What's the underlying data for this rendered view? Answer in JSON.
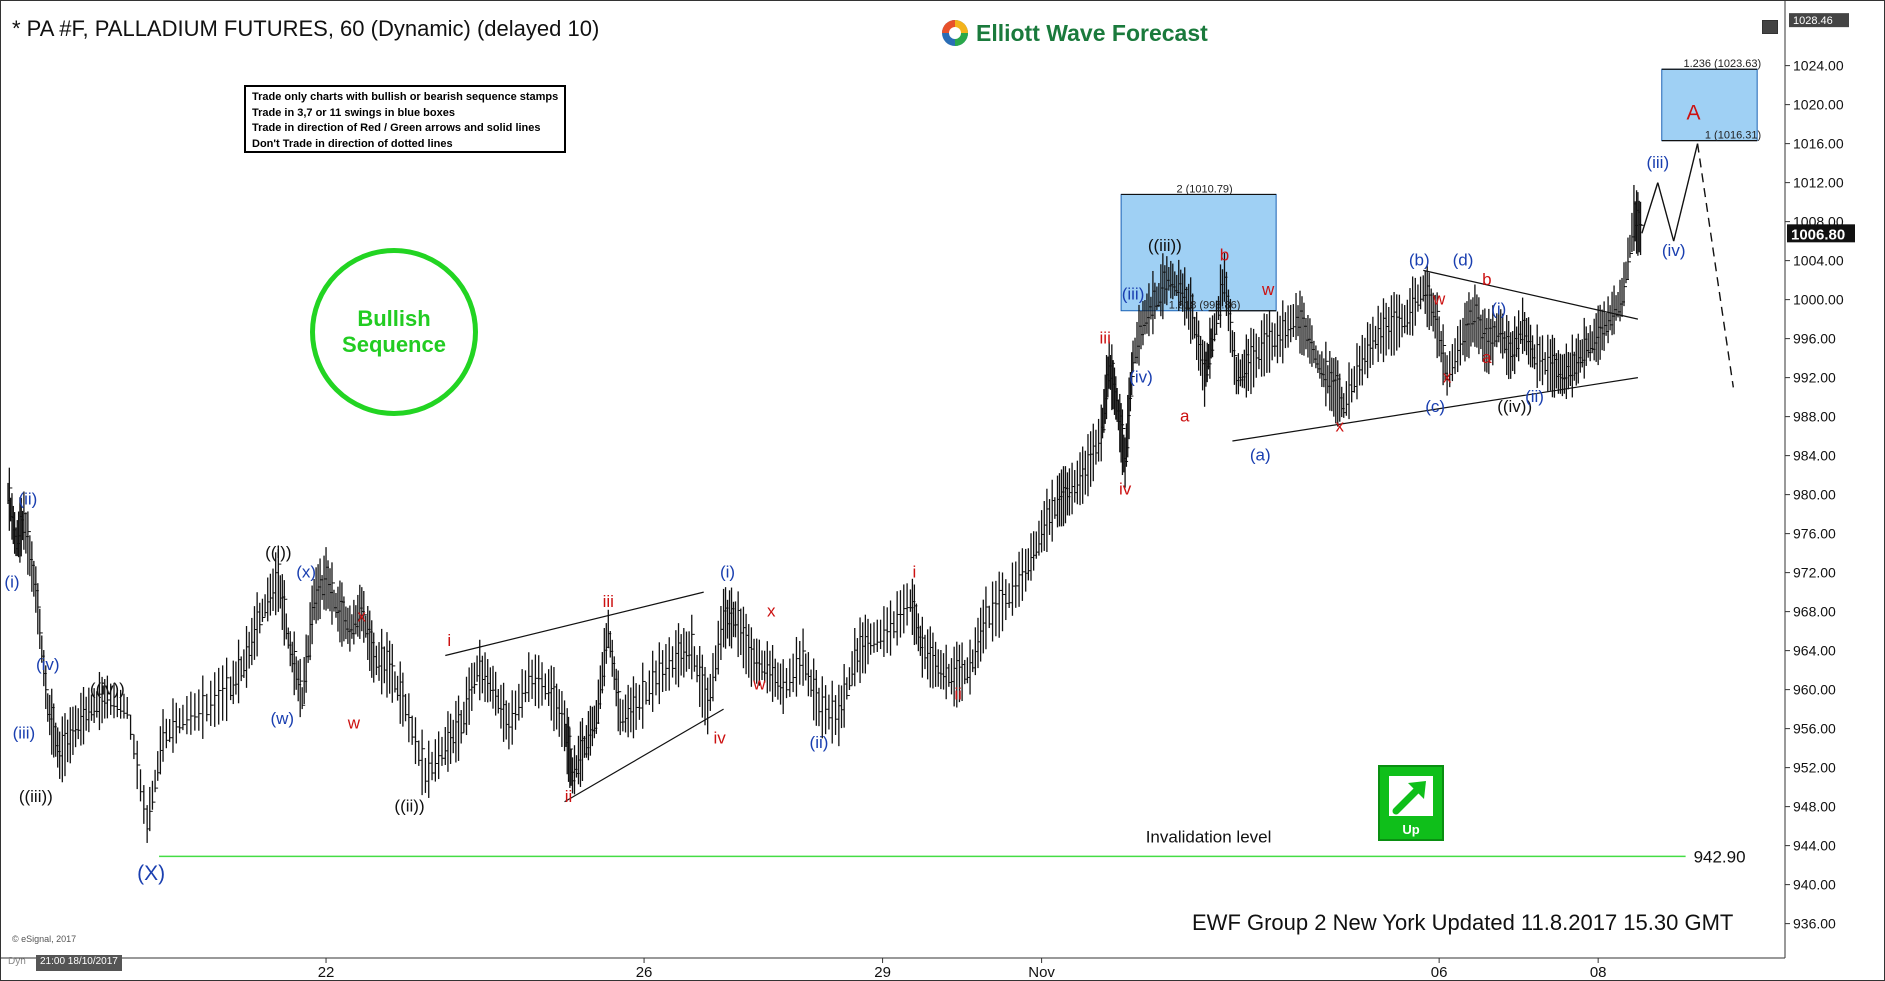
{
  "header": {
    "title": "* PA #F, PALLADIUM FUTURES, 60 (Dynamic) (delayed 10)",
    "brand": "Elliott Wave Forecast",
    "brand_icon": "wave-logo-icon"
  },
  "rules": [
    "Trade only charts with bullish or bearish sequence stamps",
    "Trade in 3,7 or 11 swings in blue boxes",
    "Trade in direction of Red / Green arrows and solid lines",
    "Don't Trade in direction of dotted lines"
  ],
  "sequence_stamp": {
    "line1": "Bullish",
    "line2": "Sequence",
    "color": "#22cc22"
  },
  "up_badge": {
    "label": "Up",
    "icon": "up-arrow-icon",
    "color": "#0fbf1a"
  },
  "footer": {
    "updated": "EWF Group 2 New York Updated 11.8.2017 15.30 GMT",
    "esignal": "© eSignal, 2017",
    "dyn": "Dyn",
    "cursor_date": "21:00 18/10/2017"
  },
  "chart_data": {
    "type": "line",
    "title": "",
    "xlabel": "",
    "ylabel": "",
    "ylim": [
      933.5,
      1029.5
    ],
    "y_ticks": [
      "1024.00",
      "1020.00",
      "1016.00",
      "1012.00",
      "1008.00",
      "1004.00",
      "1000.00",
      "996.00",
      "992.00",
      "988.00",
      "984.00",
      "980.00",
      "976.00",
      "972.00",
      "968.00",
      "964.00",
      "960.00",
      "956.00",
      "952.00",
      "948.00",
      "944.00",
      "940.00",
      "936.00"
    ],
    "top_scale_label": "1028.46",
    "last_price": "1006.80",
    "x_ticks": [
      {
        "label": "22",
        "t": 22
      },
      {
        "label": "26",
        "t": 26
      },
      {
        "label": "29",
        "t": 29
      },
      {
        "label": "Nov",
        "t": 31
      },
      {
        "label": "06",
        "t": 36
      },
      {
        "label": "08",
        "t": 38
      }
    ],
    "price_series": [
      {
        "t": 18.0,
        "v": 980
      },
      {
        "t": 18.1,
        "v": 975
      },
      {
        "t": 18.2,
        "v": 977
      },
      {
        "t": 18.35,
        "v": 970
      },
      {
        "t": 18.5,
        "v": 958
      },
      {
        "t": 18.65,
        "v": 953
      },
      {
        "t": 18.85,
        "v": 956
      },
      {
        "t": 19.05,
        "v": 958
      },
      {
        "t": 19.25,
        "v": 959
      },
      {
        "t": 19.5,
        "v": 958
      },
      {
        "t": 19.75,
        "v": 946
      },
      {
        "t": 19.95,
        "v": 955
      },
      {
        "t": 20.2,
        "v": 957
      },
      {
        "t": 20.5,
        "v": 958
      },
      {
        "t": 20.8,
        "v": 960
      },
      {
        "t": 21.0,
        "v": 963
      },
      {
        "t": 21.2,
        "v": 968
      },
      {
        "t": 21.4,
        "v": 971
      },
      {
        "t": 21.55,
        "v": 964
      },
      {
        "t": 21.7,
        "v": 959
      },
      {
        "t": 21.85,
        "v": 969
      },
      {
        "t": 22.0,
        "v": 971
      },
      {
        "t": 22.15,
        "v": 968
      },
      {
        "t": 22.3,
        "v": 966
      },
      {
        "t": 22.45,
        "v": 968
      },
      {
        "t": 22.6,
        "v": 963
      },
      {
        "t": 22.8,
        "v": 962
      },
      {
        "t": 23.0,
        "v": 958
      },
      {
        "t": 23.25,
        "v": 951
      },
      {
        "t": 23.5,
        "v": 954
      },
      {
        "t": 23.7,
        "v": 956
      },
      {
        "t": 23.9,
        "v": 962
      },
      {
        "t": 24.1,
        "v": 960
      },
      {
        "t": 24.3,
        "v": 956
      },
      {
        "t": 24.55,
        "v": 961
      },
      {
        "t": 24.8,
        "v": 960
      },
      {
        "t": 25.0,
        "v": 956
      },
      {
        "t": 25.1,
        "v": 951
      },
      {
        "t": 25.25,
        "v": 954
      },
      {
        "t": 25.4,
        "v": 957
      },
      {
        "t": 25.55,
        "v": 966
      },
      {
        "t": 25.7,
        "v": 957
      },
      {
        "t": 25.9,
        "v": 958
      },
      {
        "t": 26.15,
        "v": 961
      },
      {
        "t": 26.4,
        "v": 963
      },
      {
        "t": 26.6,
        "v": 964
      },
      {
        "t": 26.8,
        "v": 958
      },
      {
        "t": 27.0,
        "v": 967
      },
      {
        "t": 27.15,
        "v": 967
      },
      {
        "t": 27.35,
        "v": 963
      },
      {
        "t": 27.55,
        "v": 962
      },
      {
        "t": 27.75,
        "v": 960
      },
      {
        "t": 28.0,
        "v": 963
      },
      {
        "t": 28.2,
        "v": 958
      },
      {
        "t": 28.45,
        "v": 957
      },
      {
        "t": 28.65,
        "v": 963
      },
      {
        "t": 28.85,
        "v": 965
      },
      {
        "t": 29.1,
        "v": 966
      },
      {
        "t": 29.35,
        "v": 969
      },
      {
        "t": 29.5,
        "v": 964
      },
      {
        "t": 29.7,
        "v": 962
      },
      {
        "t": 29.9,
        "v": 961
      },
      {
        "t": 30.1,
        "v": 962
      },
      {
        "t": 30.3,
        "v": 967
      },
      {
        "t": 30.55,
        "v": 969
      },
      {
        "t": 30.8,
        "v": 972
      },
      {
        "t": 31.0,
        "v": 976
      },
      {
        "t": 31.2,
        "v": 979
      },
      {
        "t": 31.35,
        "v": 980
      },
      {
        "t": 31.55,
        "v": 982
      },
      {
        "t": 31.75,
        "v": 986
      },
      {
        "t": 31.85,
        "v": 993
      },
      {
        "t": 31.95,
        "v": 989
      },
      {
        "t": 32.05,
        "v": 983
      },
      {
        "t": 32.15,
        "v": 994
      },
      {
        "t": 32.3,
        "v": 998
      },
      {
        "t": 32.45,
        "v": 1000
      },
      {
        "t": 32.6,
        "v": 1002
      },
      {
        "t": 32.75,
        "v": 1001
      },
      {
        "t": 32.9,
        "v": 998
      },
      {
        "t": 33.05,
        "v": 992
      },
      {
        "t": 33.15,
        "v": 996
      },
      {
        "t": 33.3,
        "v": 1002
      },
      {
        "t": 33.45,
        "v": 992
      },
      {
        "t": 33.6,
        "v": 993
      },
      {
        "t": 33.8,
        "v": 995
      },
      {
        "t": 34.0,
        "v": 996
      },
      {
        "t": 34.2,
        "v": 998
      },
      {
        "t": 34.35,
        "v": 996
      },
      {
        "t": 34.5,
        "v": 993
      },
      {
        "t": 34.65,
        "v": 991
      },
      {
        "t": 34.8,
        "v": 989
      },
      {
        "t": 35.0,
        "v": 993
      },
      {
        "t": 35.2,
        "v": 996
      },
      {
        "t": 35.4,
        "v": 997
      },
      {
        "t": 35.6,
        "v": 998
      },
      {
        "t": 35.8,
        "v": 1001
      },
      {
        "t": 35.95,
        "v": 998
      },
      {
        "t": 36.1,
        "v": 992
      },
      {
        "t": 36.3,
        "v": 996
      },
      {
        "t": 36.45,
        "v": 998
      },
      {
        "t": 36.6,
        "v": 995
      },
      {
        "t": 36.75,
        "v": 997
      },
      {
        "t": 36.9,
        "v": 994
      },
      {
        "t": 37.05,
        "v": 997
      },
      {
        "t": 37.2,
        "v": 994
      },
      {
        "t": 37.4,
        "v": 993
      },
      {
        "t": 37.55,
        "v": 992
      },
      {
        "t": 37.7,
        "v": 993
      },
      {
        "t": 37.85,
        "v": 995
      },
      {
        "t": 38.0,
        "v": 996
      },
      {
        "t": 38.15,
        "v": 998
      },
      {
        "t": 38.3,
        "v": 1000
      },
      {
        "t": 38.45,
        "v": 1008
      },
      {
        "t": 38.55,
        "v": 1006.8
      }
    ],
    "projection": [
      {
        "t": 38.55,
        "v": 1006.8
      },
      {
        "t": 38.75,
        "v": 1012
      },
      {
        "t": 38.95,
        "v": 1006
      },
      {
        "t": 39.25,
        "v": 1016
      },
      {
        "t": 39.7,
        "v": 991
      }
    ],
    "blue_boxes": [
      {
        "t1": 32.0,
        "t2": 33.95,
        "v1": 998.86,
        "v2": 1010.79
      },
      {
        "t1": 38.8,
        "t2": 40.0,
        "v1": 1016.31,
        "v2": 1023.63
      }
    ],
    "fib_levels": [
      {
        "label": "2 (1010.79)",
        "v": 1010.79
      },
      {
        "label": "1.618 (998.86)",
        "v": 998.86
      },
      {
        "label": "1.236 (1023.63)",
        "v": 1023.63
      },
      {
        "label": "1 (1016.31)",
        "v": 1016.31
      }
    ],
    "invalidation": {
      "label": "Invalidation level",
      "value_label": "942.90",
      "v": 942.9,
      "color": "#44dd44"
    },
    "wave_labels": [
      {
        "text": "(ii)",
        "t": 18.25,
        "v": 979,
        "color": "#1a3fb0"
      },
      {
        "text": "(i)",
        "t": 18.05,
        "v": 970.5,
        "color": "#1a3fb0"
      },
      {
        "text": "(iv)",
        "t": 18.5,
        "v": 962,
        "color": "#1a3fb0"
      },
      {
        "text": "(iii)",
        "t": 18.2,
        "v": 955,
        "color": "#1a3fb0"
      },
      {
        "text": "((iii))",
        "t": 18.35,
        "v": 948.5,
        "color": "#111111"
      },
      {
        "text": "((iv))",
        "t": 19.25,
        "v": 959.5,
        "color": "#111111"
      },
      {
        "text": "(X)",
        "t": 19.8,
        "v": 940.5,
        "color": "#1a3fb0"
      },
      {
        "text": "((i))",
        "t": 21.4,
        "v": 973.5,
        "color": "#111111"
      },
      {
        "text": "(x)",
        "t": 21.75,
        "v": 971.5,
        "color": "#1a3fb0"
      },
      {
        "text": "(w)",
        "t": 21.45,
        "v": 956.5,
        "color": "#1a3fb0"
      },
      {
        "text": "x",
        "t": 22.45,
        "v": 967,
        "color": "#cc1111"
      },
      {
        "text": "w",
        "t": 22.35,
        "v": 956,
        "color": "#cc1111"
      },
      {
        "text": "((ii))",
        "t": 23.05,
        "v": 947.5,
        "color": "#111111"
      },
      {
        "text": "i",
        "t": 23.55,
        "v": 964.5,
        "color": "#cc1111"
      },
      {
        "text": "iii",
        "t": 25.55,
        "v": 968.5,
        "color": "#cc1111"
      },
      {
        "text": "ii",
        "t": 25.05,
        "v": 948.5,
        "color": "#cc1111"
      },
      {
        "text": "(i)",
        "t": 27.05,
        "v": 971.5,
        "color": "#1a3fb0"
      },
      {
        "text": "iv",
        "t": 26.95,
        "v": 954.5,
        "color": "#cc1111"
      },
      {
        "text": "x",
        "t": 27.6,
        "v": 967.5,
        "color": "#cc1111"
      },
      {
        "text": "w",
        "t": 27.45,
        "v": 960,
        "color": "#cc1111"
      },
      {
        "text": "(ii)",
        "t": 28.2,
        "v": 954,
        "color": "#1a3fb0"
      },
      {
        "text": "i",
        "t": 29.4,
        "v": 971.5,
        "color": "#cc1111"
      },
      {
        "text": "ii",
        "t": 29.95,
        "v": 959,
        "color": "#cc1111"
      },
      {
        "text": "iii",
        "t": 31.8,
        "v": 995.5,
        "color": "#cc1111"
      },
      {
        "text": "iv",
        "t": 32.05,
        "v": 980,
        "color": "#cc1111"
      },
      {
        "text": "(iii)",
        "t": 32.15,
        "v": 1000,
        "color": "#1a3fb0"
      },
      {
        "text": "(iv)",
        "t": 32.25,
        "v": 991.5,
        "color": "#1a3fb0"
      },
      {
        "text": "((iii))",
        "t": 32.55,
        "v": 1005,
        "color": "#111111"
      },
      {
        "text": "a",
        "t": 32.8,
        "v": 987.5,
        "color": "#cc1111"
      },
      {
        "text": "b",
        "t": 33.3,
        "v": 1004,
        "color": "#cc1111"
      },
      {
        "text": "w",
        "t": 33.85,
        "v": 1000.5,
        "color": "#cc1111"
      },
      {
        "text": "(a)",
        "t": 33.75,
        "v": 983.5,
        "color": "#1a3fb0"
      },
      {
        "text": "x",
        "t": 34.75,
        "v": 986.5,
        "color": "#cc1111"
      },
      {
        "text": "(b)",
        "t": 35.75,
        "v": 1003.5,
        "color": "#1a3fb0"
      },
      {
        "text": "w",
        "t": 36.0,
        "v": 999.5,
        "color": "#cc1111"
      },
      {
        "text": "x",
        "t": 36.1,
        "v": 991.5,
        "color": "#cc1111"
      },
      {
        "text": "(c)",
        "t": 35.95,
        "v": 988.5,
        "color": "#1a3fb0"
      },
      {
        "text": "(d)",
        "t": 36.3,
        "v": 1003.5,
        "color": "#1a3fb0"
      },
      {
        "text": "b",
        "t": 36.6,
        "v": 1001.5,
        "color": "#cc1111"
      },
      {
        "text": "a",
        "t": 36.6,
        "v": 993.5,
        "color": "#cc1111"
      },
      {
        "text": "(i)",
        "t": 36.75,
        "v": 998.5,
        "color": "#1a3fb0"
      },
      {
        "text": "((iv))",
        "t": 36.95,
        "v": 988.5,
        "color": "#111111"
      },
      {
        "text": "(ii)",
        "t": 37.2,
        "v": 989.5,
        "color": "#1a3fb0"
      },
      {
        "text": "(iii)",
        "t": 38.75,
        "v": 1013.5,
        "color": "#1a3fb0"
      },
      {
        "text": "(iv)",
        "t": 38.95,
        "v": 1004.5,
        "color": "#1a3fb0"
      },
      {
        "text": "A",
        "t": 39.2,
        "v": 1018.5,
        "color": "#cc1111"
      }
    ],
    "trend_lines": [
      {
        "t1": 23.5,
        "v1": 963.5,
        "t2": 26.75,
        "v2": 970
      },
      {
        "t1": 25.0,
        "v1": 948.5,
        "t2": 27.0,
        "v2": 958
      },
      {
        "t1": 33.4,
        "v1": 985.5,
        "t2": 38.5,
        "v2": 992
      },
      {
        "t1": 35.8,
        "v1": 1003,
        "t2": 38.5,
        "v2": 998
      }
    ],
    "grid": false,
    "legend": "none"
  }
}
